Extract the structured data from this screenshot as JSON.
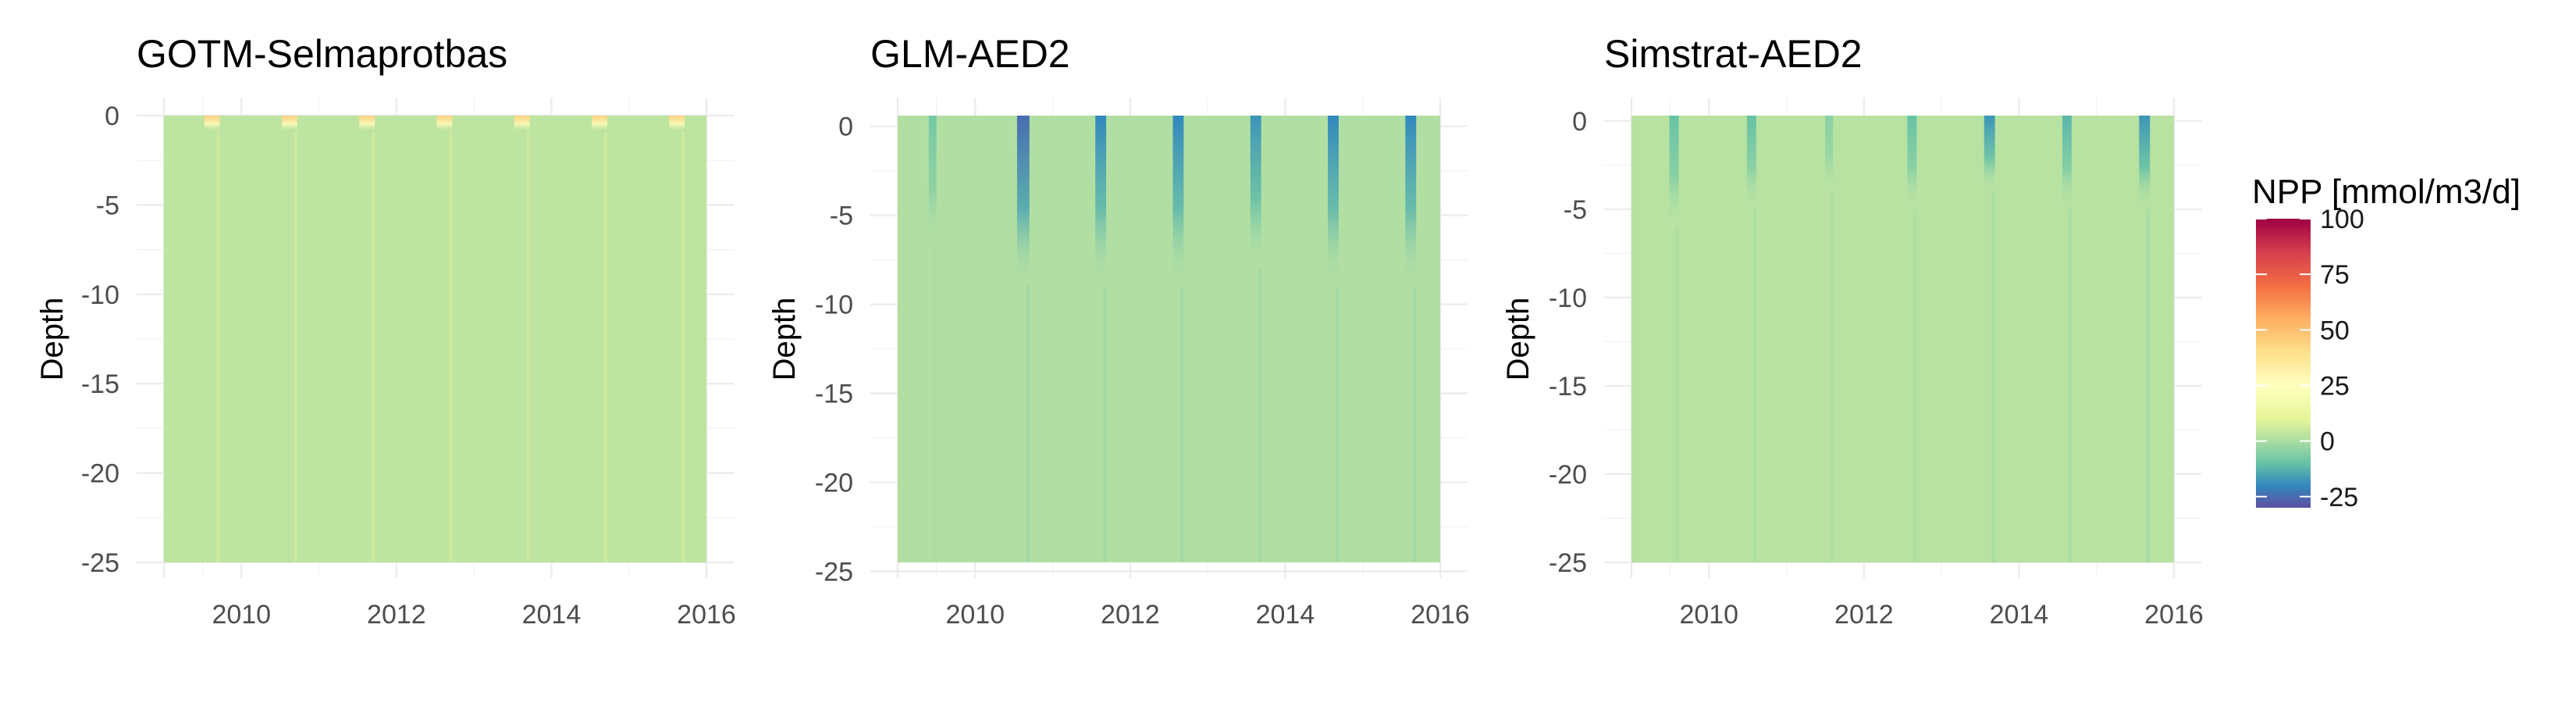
{
  "chart_data": [
    {
      "type": "heatmap",
      "title": "GOTM-Selmaprotbas",
      "ylabel": "Depth",
      "xlabel": "",
      "xlim": [
        2009.0,
        2016.0
      ],
      "ylim": [
        -25,
        0
      ],
      "x_ticks": [
        2010,
        2012,
        2014,
        2016
      ],
      "x_tick_labels": [
        "2010",
        "2012",
        "2014",
        "2016"
      ],
      "y_ticks": [
        0,
        -5,
        -10,
        -15,
        -20,
        -25
      ],
      "y_tick_labels": [
        "0",
        "-5",
        "-10",
        "-15",
        "-20",
        "-25"
      ],
      "background_value": 3,
      "features": [
        {
          "x_center": 2009.62,
          "width": 0.2,
          "depth_min": -0.9,
          "value": 45
        },
        {
          "x_center": 2010.62,
          "width": 0.2,
          "depth_min": -0.9,
          "value": 45
        },
        {
          "x_center": 2011.62,
          "width": 0.2,
          "depth_min": -0.9,
          "value": 45
        },
        {
          "x_center": 2012.62,
          "width": 0.2,
          "depth_min": -0.9,
          "value": 45
        },
        {
          "x_center": 2013.62,
          "width": 0.2,
          "depth_min": -0.9,
          "value": 45
        },
        {
          "x_center": 2014.62,
          "width": 0.2,
          "depth_min": -0.9,
          "value": 45
        },
        {
          "x_center": 2015.62,
          "width": 0.2,
          "depth_min": -0.9,
          "value": 45
        }
      ],
      "grid": true
    },
    {
      "type": "heatmap",
      "title": "GLM-AED2",
      "ylabel": "Depth",
      "xlabel": "",
      "xlim": [
        2009.0,
        2016.0
      ],
      "ylim": [
        -24.5,
        0.6
      ],
      "x_ticks": [
        2010,
        2012,
        2014,
        2016
      ],
      "x_tick_labels": [
        "2010",
        "2012",
        "2014",
        "2016"
      ],
      "y_ticks": [
        0,
        -5,
        -10,
        -15,
        -20,
        -25
      ],
      "y_tick_labels": [
        "0",
        "-5",
        "-10",
        "-15",
        "-20",
        "-25"
      ],
      "background_value": 1,
      "features": [
        {
          "x_center": 2009.45,
          "width": 0.1,
          "depth_min": -7,
          "value": -8
        },
        {
          "x_center": 2010.62,
          "width": 0.16,
          "depth_min": -9,
          "value": -25
        },
        {
          "x_center": 2011.62,
          "width": 0.14,
          "depth_min": -9,
          "value": -20
        },
        {
          "x_center": 2012.62,
          "width": 0.14,
          "depth_min": -9,
          "value": -20
        },
        {
          "x_center": 2013.62,
          "width": 0.14,
          "depth_min": -8,
          "value": -18
        },
        {
          "x_center": 2014.62,
          "width": 0.14,
          "depth_min": -9,
          "value": -20
        },
        {
          "x_center": 2015.62,
          "width": 0.14,
          "depth_min": -9,
          "value": -20
        }
      ],
      "grid": true
    },
    {
      "type": "heatmap",
      "title": "Simstrat-AED2",
      "ylabel": "Depth",
      "xlabel": "",
      "xlim": [
        2009.0,
        2016.0
      ],
      "ylim": [
        -25,
        0.3
      ],
      "x_ticks": [
        2010,
        2012,
        2014,
        2016
      ],
      "x_tick_labels": [
        "2010",
        "2012",
        "2014",
        "2016"
      ],
      "y_ticks": [
        0,
        -5,
        -10,
        -15,
        -20,
        -25
      ],
      "y_tick_labels": [
        "0",
        "-5",
        "-10",
        "-15",
        "-20",
        "-25"
      ],
      "background_value": 2,
      "features": [
        {
          "x_center": 2009.55,
          "width": 0.12,
          "depth_min": -6,
          "value": -10
        },
        {
          "x_center": 2010.55,
          "width": 0.12,
          "depth_min": -5,
          "value": -10
        },
        {
          "x_center": 2011.55,
          "width": 0.1,
          "depth_min": -4,
          "value": -5
        },
        {
          "x_center": 2012.62,
          "width": 0.12,
          "depth_min": -5,
          "value": -10
        },
        {
          "x_center": 2013.62,
          "width": 0.14,
          "depth_min": -4,
          "value": -18
        },
        {
          "x_center": 2014.62,
          "width": 0.12,
          "depth_min": -5,
          "value": -12
        },
        {
          "x_center": 2015.62,
          "width": 0.14,
          "depth_min": -5,
          "value": -18
        }
      ],
      "grid": true
    }
  ],
  "legend": {
    "title": "NPP [mmol/m3/d]",
    "placement": "right",
    "min": -30,
    "max": 100,
    "ticks": [
      100,
      75,
      50,
      25,
      0,
      -25
    ],
    "tick_labels": [
      "100",
      "75",
      "50",
      "25",
      "0",
      "-25"
    ],
    "colors": [
      "#5E4FA2",
      "#3288BD",
      "#66C2A5",
      "#ABDDA4",
      "#E6F598",
      "#FFFFBF",
      "#FEE08B",
      "#FDAE61",
      "#F46D43",
      "#D53E4F",
      "#9E0142"
    ],
    "color_stops_values": [
      -30,
      -20,
      -10,
      0,
      10,
      25,
      40,
      55,
      70,
      85,
      100
    ]
  }
}
